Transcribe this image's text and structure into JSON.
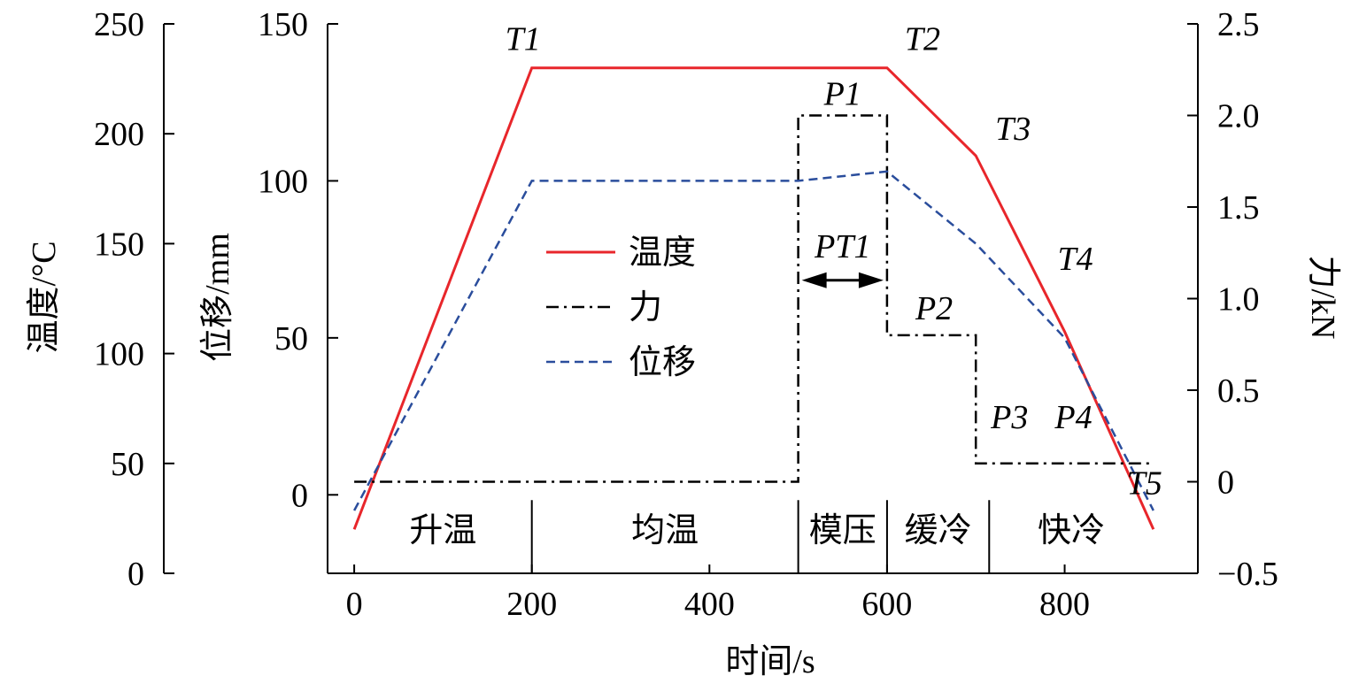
{
  "chart_data": {
    "type": "line",
    "x_label": "时间/s",
    "x_ticks": [
      "0",
      "200",
      "400",
      "600",
      "800"
    ],
    "x_range": [
      -30,
      950
    ],
    "axes": {
      "temperature": {
        "label": "温度/°C",
        "range": [
          0,
          250
        ],
        "ticks": [
          "0",
          "50",
          "100",
          "150",
          "200",
          "250"
        ]
      },
      "displacement": {
        "label": "位移/mm",
        "range": [
          -25,
          150
        ],
        "ticks": [
          "0",
          "50",
          "100",
          "150"
        ]
      },
      "force": {
        "label": "力/kN",
        "range": [
          -0.5,
          2.5
        ],
        "ticks": [
          "−0.5",
          "0",
          "0.5",
          "1.0",
          "1.5",
          "2.0",
          "2.5"
        ]
      }
    },
    "series": [
      {
        "name": "温度",
        "axis": "temperature",
        "color": "#e8262b",
        "dash": "solid",
        "x": [
          0,
          200,
          600,
          700,
          800,
          900
        ],
        "y": [
          20,
          230,
          230,
          190,
          110,
          20
        ]
      },
      {
        "name": "力",
        "axis": "force",
        "color": "#000000",
        "dash": "dashdot",
        "x": [
          0,
          500,
          500,
          600,
          600,
          700,
          700,
          900
        ],
        "y": [
          0,
          0,
          2.0,
          2.0,
          0.8,
          0.8,
          0.1,
          0.1
        ]
      },
      {
        "name": "位移",
        "axis": "displacement",
        "color": "#2a4d9c",
        "dash": "dashed",
        "x": [
          0,
          200,
          500,
          600,
          700,
          800,
          900
        ],
        "y": [
          -5,
          100,
          100,
          103,
          80,
          50,
          -5
        ]
      }
    ],
    "annotations": [
      {
        "id": "T1",
        "label": "T1"
      },
      {
        "id": "T2",
        "label": "T2"
      },
      {
        "id": "T3",
        "label": "T3"
      },
      {
        "id": "T4",
        "label": "T4"
      },
      {
        "id": "T5",
        "label": "T5"
      },
      {
        "id": "P1",
        "label": "P1"
      },
      {
        "id": "P2",
        "label": "P2"
      },
      {
        "id": "P3",
        "label": "P3"
      },
      {
        "id": "P4",
        "label": "P4"
      },
      {
        "id": "PT1",
        "label": "PT1"
      }
    ],
    "phases": [
      {
        "label": "升温",
        "start": 0,
        "end": 200
      },
      {
        "label": "均温",
        "start": 200,
        "end": 500
      },
      {
        "label": "模压",
        "start": 500,
        "end": 600
      },
      {
        "label": "缓冷",
        "start": 600,
        "end": 715
      },
      {
        "label": "快冷",
        "start": 715,
        "end": 900
      }
    ],
    "legend_position": "center-left",
    "grid": false
  }
}
